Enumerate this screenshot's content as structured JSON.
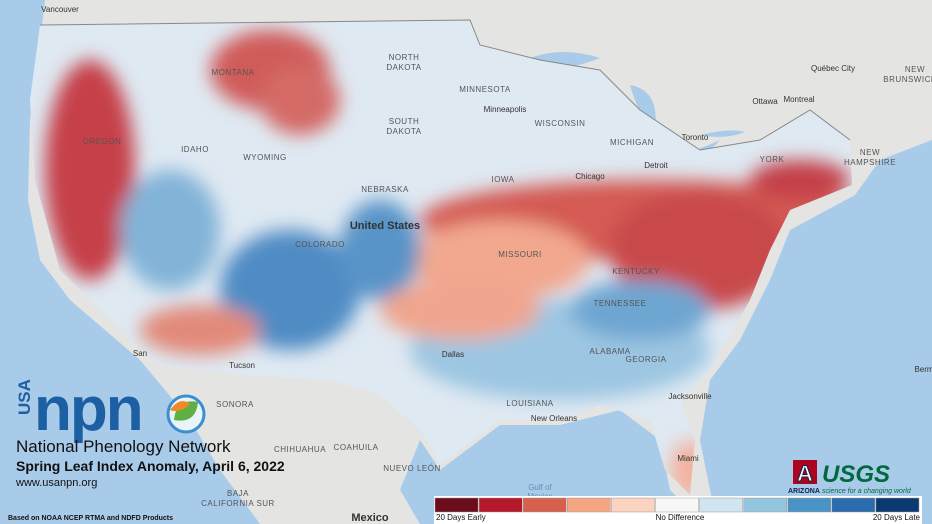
{
  "map": {
    "labels": [
      "Vancouver",
      "MONTANA",
      "NORTH",
      "DAKOTA",
      "MINNESOTA",
      "Minneapolis",
      "WISCONSIN",
      "SOUTH",
      "DAKOTA",
      "MICHIGAN",
      "WYOMING",
      "IDAHO",
      "OREGON",
      "IOWA",
      "Chicago",
      "Detroit",
      "Toronto",
      "Ottawa",
      "Montreal",
      "Québec City",
      "NEW",
      "BRUNSWICK",
      "NEW",
      "HAMPSHIRE",
      "YORK",
      "NEBRASKA",
      "United States",
      "COLORADO",
      "MISSOURI",
      "KENTUCKY",
      "TENNESSEE",
      "Dallas",
      "ALABAMA",
      "GEORGIA",
      "LOUISIANA",
      "New Orleans",
      "Jacksonville",
      "Miami",
      "Gulf of",
      "Mexico",
      "CHIHUAHUA",
      "COAHUILA",
      "SONORA",
      "NUEVO LEÓN",
      "BAJA",
      "CALIFORNIA SUR",
      "Mexico",
      "Berm",
      "Tucson",
      "San"
    ],
    "logo": {
      "country": "USA",
      "brand": "npn",
      "name": "National Phenology Network",
      "title": "Spring Leaf Index Anomaly, April 6, 2022",
      "url": "www.usanpn.org",
      "source": "Based on NOAA NCEP RTMA and NDFD Products"
    },
    "partners": {
      "arizona_mark": "A",
      "arizona": "ARIZONA",
      "usgs": "USGS",
      "usgs_tagline": "science for a changing world"
    },
    "legend": {
      "colors": [
        "#6b0d1c",
        "#b3182b",
        "#d6604d",
        "#f4a582",
        "#fbd3c0",
        "#f7f7f7",
        "#d1e5f0",
        "#92c5de",
        "#4a93c6",
        "#2a6cad",
        "#0b3a73"
      ],
      "low": "20 Days Early",
      "mid": "No Difference",
      "high": "20 Days Late"
    }
  }
}
